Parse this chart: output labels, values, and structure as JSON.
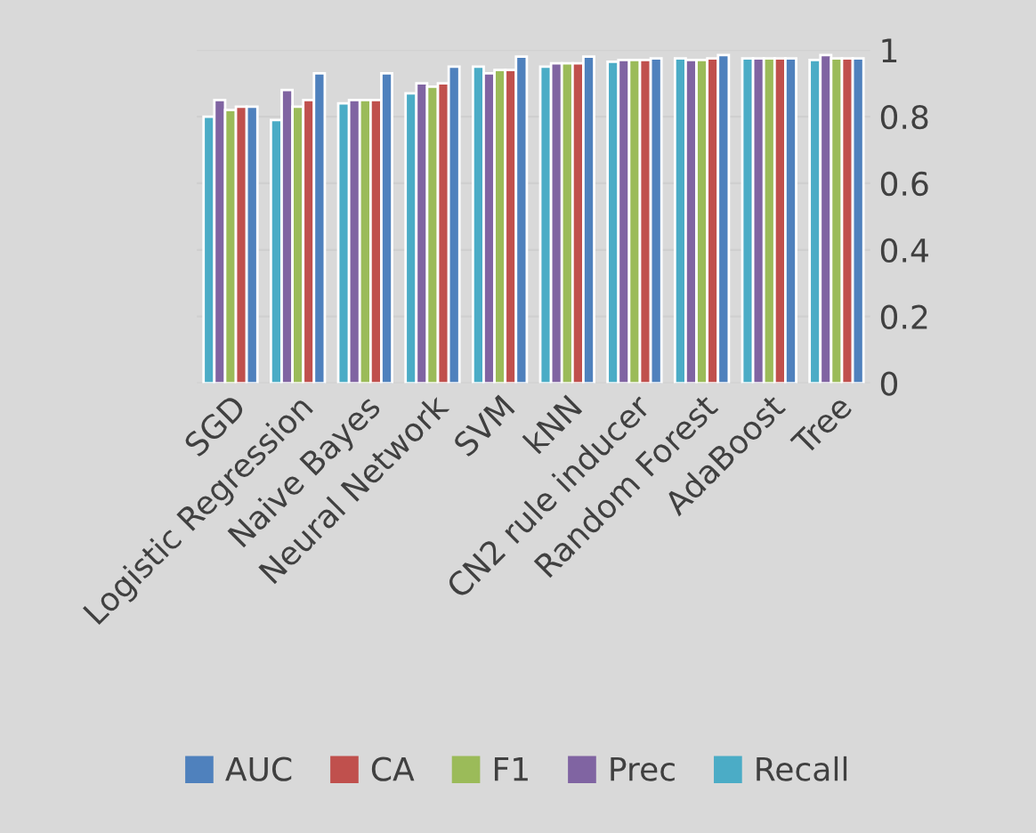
{
  "chart_data": {
    "type": "bar",
    "categories": [
      "SGD",
      "Logistic Regression",
      "Naive Bayes",
      "Neural Network",
      "SVM",
      "kNN",
      "CN2 rule inducer",
      "Random Forest",
      "AdaBoost",
      "Tree"
    ],
    "series": [
      {
        "name": "AUC",
        "color": "#4f81bd",
        "values": [
          0.83,
          0.93,
          0.93,
          0.95,
          0.98,
          0.98,
          0.975,
          0.985,
          0.975,
          0.975
        ]
      },
      {
        "name": "CA",
        "color": "#c0504d",
        "values": [
          0.83,
          0.85,
          0.85,
          0.9,
          0.94,
          0.96,
          0.97,
          0.975,
          0.975,
          0.975
        ]
      },
      {
        "name": "F1",
        "color": "#9bbb59",
        "values": [
          0.82,
          0.83,
          0.85,
          0.89,
          0.94,
          0.96,
          0.97,
          0.97,
          0.975,
          0.975
        ]
      },
      {
        "name": "Prec",
        "color": "#8064a2",
        "values": [
          0.85,
          0.88,
          0.85,
          0.9,
          0.93,
          0.96,
          0.97,
          0.97,
          0.975,
          0.985
        ]
      },
      {
        "name": "Recall",
        "color": "#4bacc6",
        "values": [
          0.8,
          0.79,
          0.84,
          0.87,
          0.95,
          0.95,
          0.965,
          0.975,
          0.975,
          0.97
        ]
      }
    ],
    "ylim": [
      0,
      1
    ],
    "yticks": [
      0,
      0.2,
      0.4,
      0.6,
      0.8,
      1
    ],
    "grid": "y",
    "legend": "bottom"
  }
}
